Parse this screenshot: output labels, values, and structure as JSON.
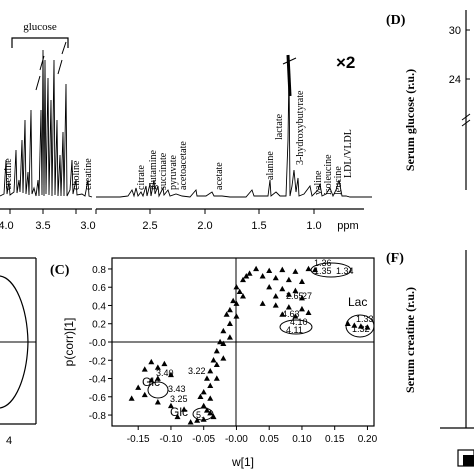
{
  "nmr": {
    "glucose_label": "glucose",
    "times2": "×2",
    "ppm": "ppm",
    "ticks": [
      "4.0",
      "3.5",
      "3.0",
      "2.5",
      "2.0",
      "1.5",
      "1.0"
    ],
    "peaks": [
      "creatine",
      "choline",
      "creatine",
      "citrate",
      "glutamine",
      "succinate",
      "pyruvate",
      "acetoacetate",
      "acetate",
      "alanine",
      "lactate",
      "3-hydroxybutyrate",
      "valine",
      "isoleucine",
      "leucine",
      "LDL/VLDL"
    ]
  },
  "panels": {
    "c": "(C)",
    "d": "(D)",
    "f": "(F)"
  },
  "scatter": {
    "xlabel": "w[1]",
    "ylabel": "p(corr)[1]",
    "xticks": [
      "-0.15",
      "-0.10",
      "-0.05",
      "-0.00",
      "0.05",
      "0.10",
      "0.15",
      "0.20"
    ],
    "yticks": [
      "0.8",
      "0.6",
      "0.4",
      "0.2",
      "-0.0",
      "-0.2",
      "-0.4",
      "-0.6",
      "-0.8"
    ],
    "annotations": {
      "lac": "Lac",
      "glc1": "Glc",
      "glc2": "Glc",
      "a136": "1.36",
      "a135": "1.35",
      "a134": "1.34",
      "a265": "2.65",
      "a27": "27",
      "a463": "4.63",
      "a410": "4.10",
      "a411": "4.11",
      "a133": "1.33",
      "a132": "1.32",
      "a340": "3.40",
      "a322": "3.22",
      "a343": "3.43",
      "a325": "3.25",
      "a5": "5.",
      "a4": "4"
    }
  },
  "right": {
    "d_ylabel": "Serum glucose (r.u.)",
    "d_ticks": [
      "30",
      "24"
    ],
    "f_ylabel": "Serum creatine (r.u.)"
  },
  "chart_data": {
    "type": "scatter",
    "title": "",
    "xlabel": "w[1]",
    "ylabel": "p(corr)[1]",
    "xlim": [
      -0.19,
      0.21
    ],
    "ylim": [
      -0.92,
      0.92
    ],
    "points": [
      [
        0.03,
        0.8
      ],
      [
        0.05,
        0.78
      ],
      [
        0.07,
        0.79
      ],
      [
        0.09,
        0.77
      ],
      [
        0.11,
        0.8
      ],
      [
        0.12,
        0.79
      ],
      [
        0.04,
        0.72
      ],
      [
        0.06,
        0.7
      ],
      [
        0.08,
        0.68
      ],
      [
        0.1,
        0.66
      ],
      [
        0.05,
        0.6
      ],
      [
        0.07,
        0.58
      ],
      [
        0.09,
        0.56
      ],
      [
        0.06,
        0.5
      ],
      [
        0.08,
        0.52
      ],
      [
        0.1,
        0.48
      ],
      [
        0.04,
        0.42
      ],
      [
        0.06,
        0.4
      ],
      [
        0.08,
        0.38
      ],
      [
        0.1,
        0.36
      ],
      [
        0.07,
        0.3
      ],
      [
        0.09,
        0.28
      ],
      [
        0.11,
        0.32
      ],
      [
        0.17,
        0.2
      ],
      [
        0.18,
        0.18
      ],
      [
        0.19,
        0.17
      ],
      [
        0.2,
        0.16
      ],
      [
        0.02,
        0.75
      ],
      [
        0.01,
        0.68
      ],
      [
        0.0,
        0.6
      ],
      [
        0.01,
        0.5
      ],
      [
        0.0,
        0.42
      ],
      [
        -0.01,
        0.35
      ],
      [
        0.0,
        0.28
      ],
      [
        -0.01,
        0.2
      ],
      [
        -0.02,
        0.12
      ],
      [
        -0.01,
        0.05
      ],
      [
        -0.02,
        -0.02
      ],
      [
        -0.03,
        -0.1
      ],
      [
        -0.02,
        -0.18
      ],
      [
        -0.03,
        -0.25
      ],
      [
        -0.04,
        -0.32
      ],
      [
        -0.03,
        -0.4
      ],
      [
        -0.04,
        -0.48
      ],
      [
        -0.05,
        -0.55
      ],
      [
        -0.04,
        -0.62
      ],
      [
        -0.05,
        -0.7
      ],
      [
        -0.04,
        -0.78
      ],
      [
        -0.05,
        -0.85
      ],
      [
        0.015,
        0.72
      ],
      [
        0.005,
        0.55
      ],
      [
        -0.005,
        0.45
      ],
      [
        -0.015,
        0.3
      ],
      [
        -0.025,
        0.0
      ],
      [
        -0.035,
        -0.2
      ],
      [
        -0.045,
        -0.4
      ],
      [
        -0.055,
        -0.6
      ],
      [
        -0.045,
        -0.75
      ],
      [
        -0.035,
        -0.82
      ],
      [
        -0.13,
        -0.22
      ],
      [
        -0.12,
        -0.28
      ],
      [
        -0.14,
        -0.3
      ],
      [
        -0.11,
        -0.24
      ],
      [
        -0.1,
        -0.36
      ],
      [
        -0.12,
        -0.4
      ],
      [
        -0.13,
        -0.42
      ],
      [
        -0.15,
        -0.5
      ],
      [
        -0.14,
        -0.58
      ],
      [
        -0.16,
        -0.62
      ],
      [
        -0.12,
        -0.66
      ],
      [
        -0.1,
        -0.7
      ],
      [
        -0.08,
        -0.74
      ],
      [
        -0.09,
        -0.82
      ],
      [
        -0.06,
        -0.86
      ],
      [
        -0.07,
        -0.88
      ]
    ],
    "grid": false
  }
}
